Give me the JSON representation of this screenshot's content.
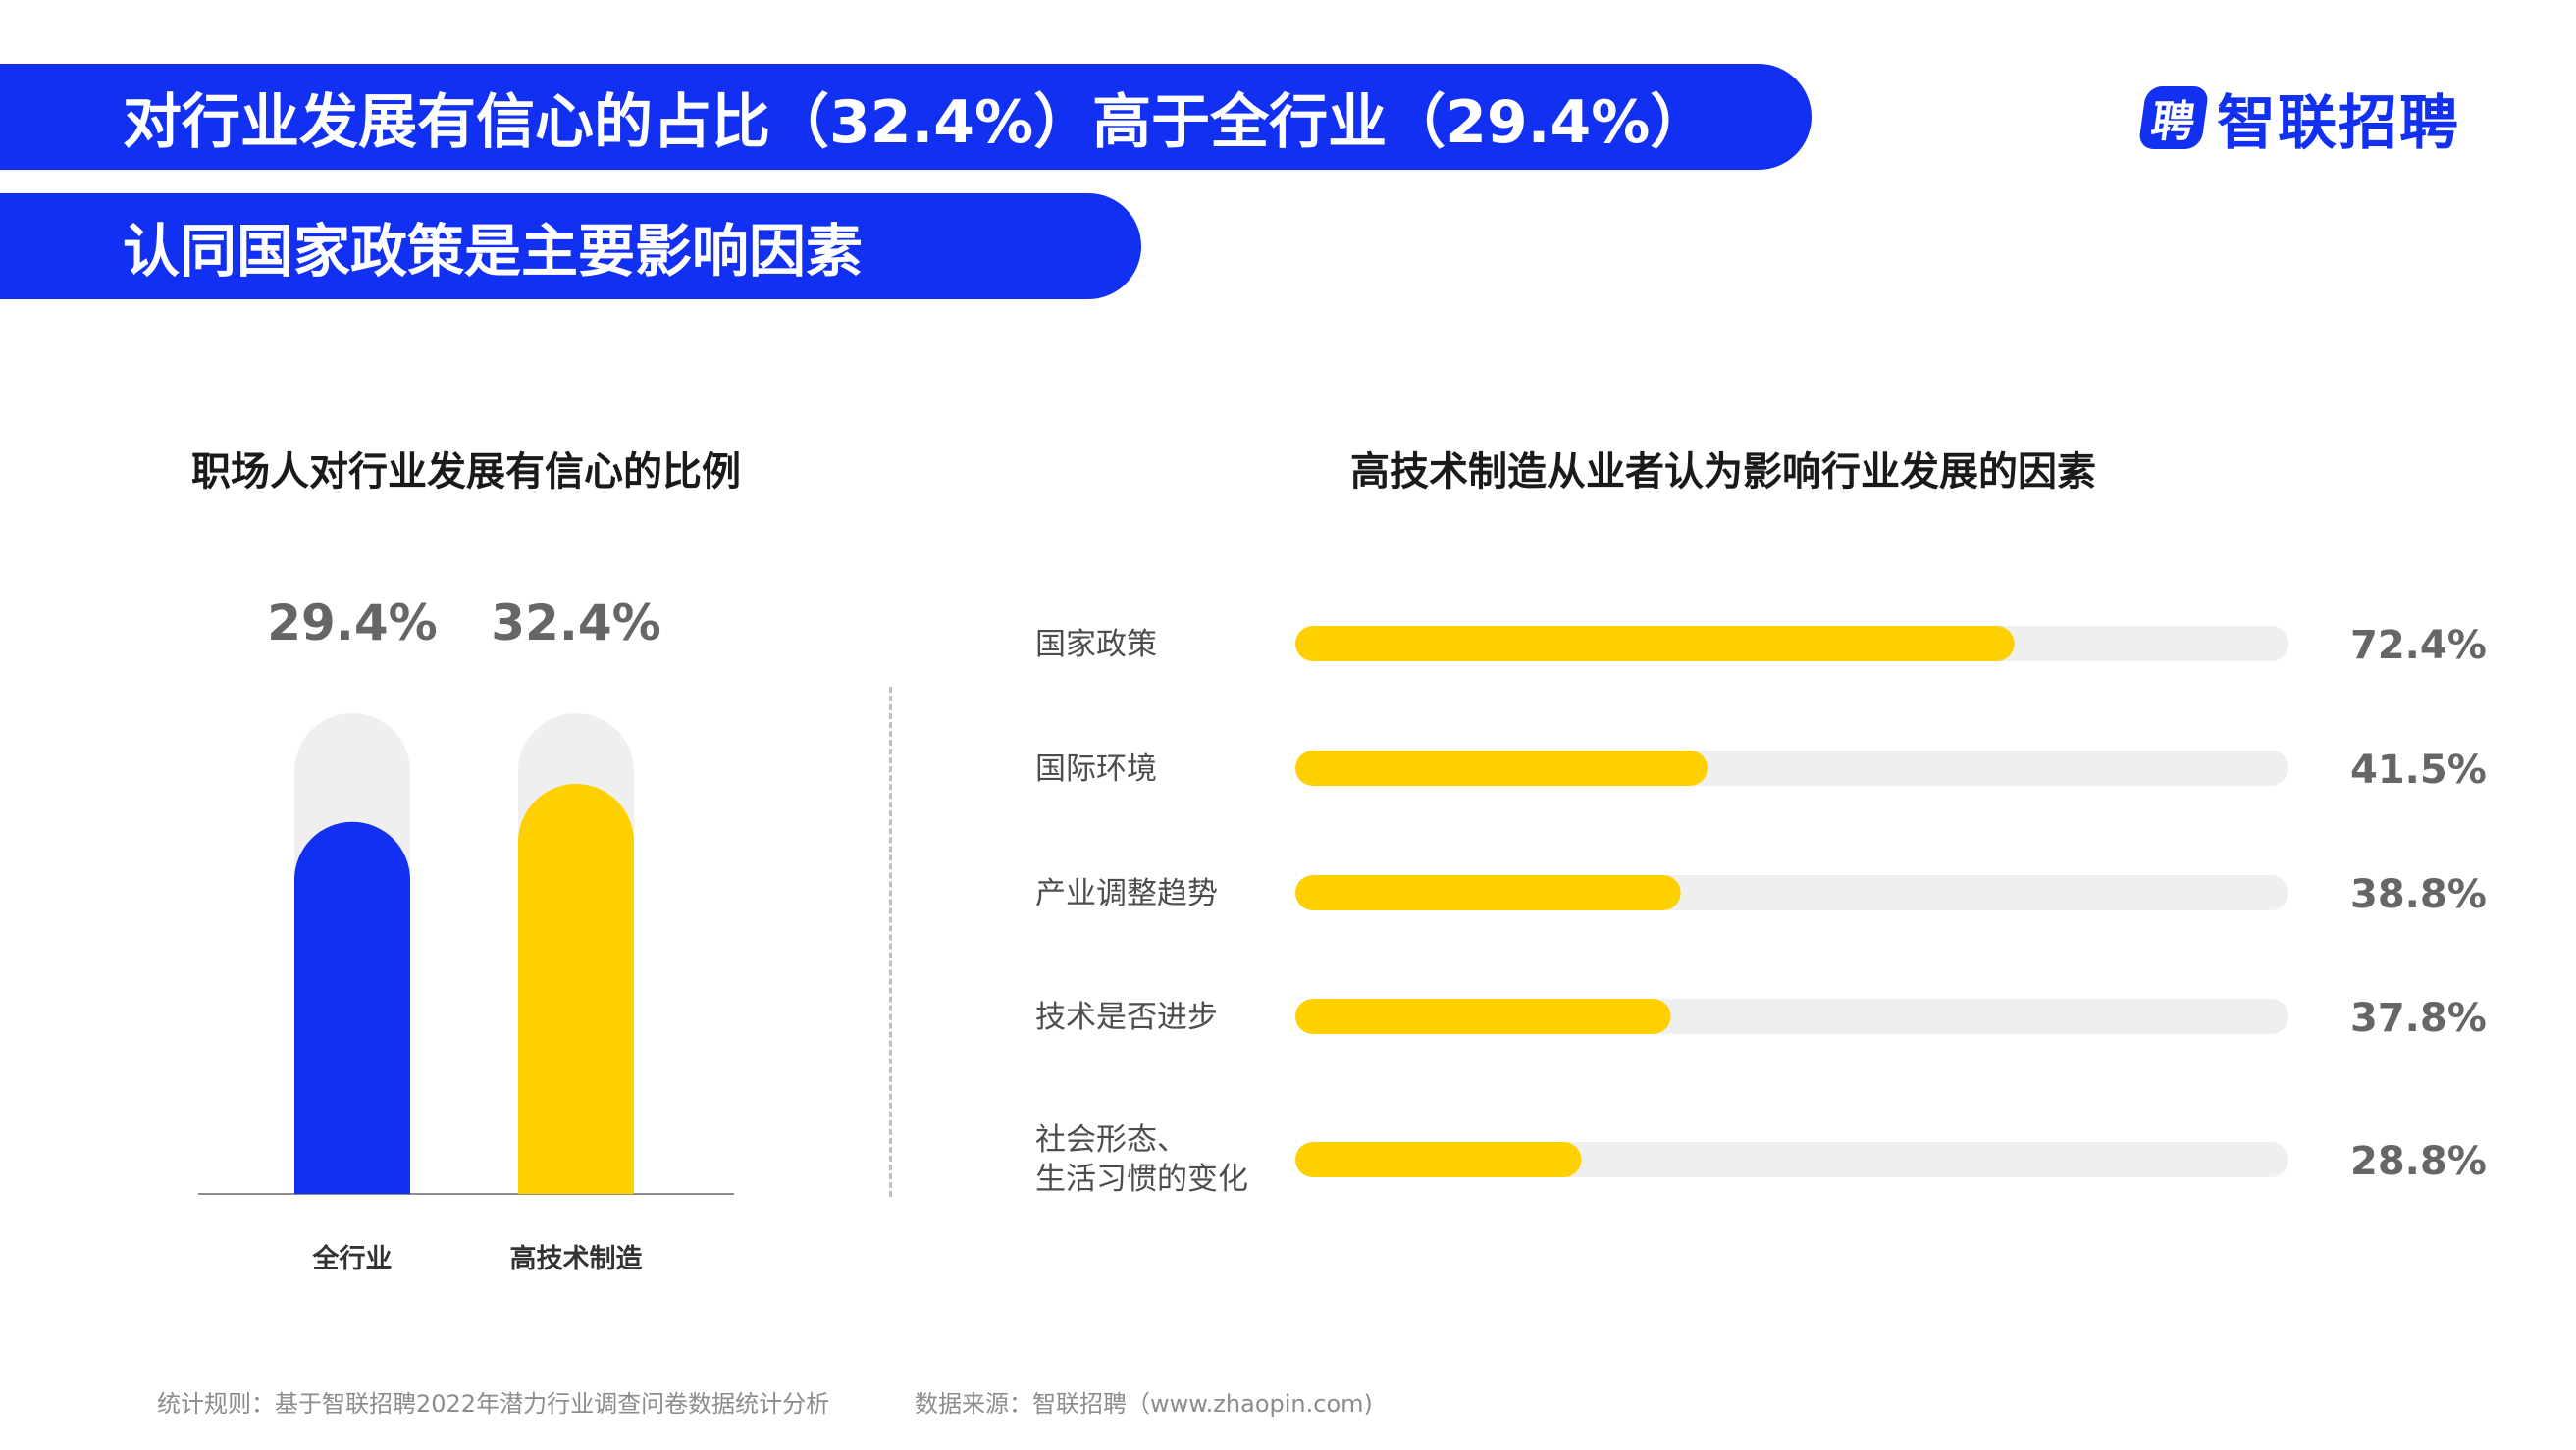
{
  "header": {
    "headline_1": "对行业发展有信心的占比（32.4%）高于全行业（29.4%）",
    "headline_2": "认同国家政策是主要影响因素"
  },
  "brand": {
    "logo_mark": "聘",
    "name": "智联招聘"
  },
  "colors": {
    "brand_blue": "#1130f2",
    "accent_yellow": "#ffd000",
    "track_gray": "#efefef",
    "value_gray": "#666666"
  },
  "chart_data": [
    {
      "type": "bar",
      "title": "职场人对行业发展有信心的比例",
      "categories": [
        "全行业",
        "高技术制造"
      ],
      "values": [
        29.4,
        32.4
      ],
      "value_labels": [
        "29.4%",
        "32.4%"
      ],
      "bar_colors": [
        "#1130f2",
        "#ffd000"
      ],
      "grid": false
    },
    {
      "type": "bar",
      "orientation": "horizontal",
      "title": "高技术制造从业者认为影响行业发展的因素",
      "categories": [
        "国家政策",
        "国际环境",
        "产业调整趋势",
        "技术是否进步",
        [
          "社会形态、",
          "生活习惯的变化"
        ]
      ],
      "values": [
        72.4,
        41.5,
        38.8,
        37.8,
        28.8
      ],
      "value_labels": [
        "72.4%",
        "41.5%",
        "38.8%",
        "37.8%",
        "28.8%"
      ],
      "xlim": [
        0,
        100
      ],
      "grid": false
    }
  ],
  "footer": {
    "rule": "统计规则：基于智联招聘2022年潜力行业调查问卷数据统计分析",
    "source": "数据来源：智联招聘（www.zhaopin.com)"
  }
}
